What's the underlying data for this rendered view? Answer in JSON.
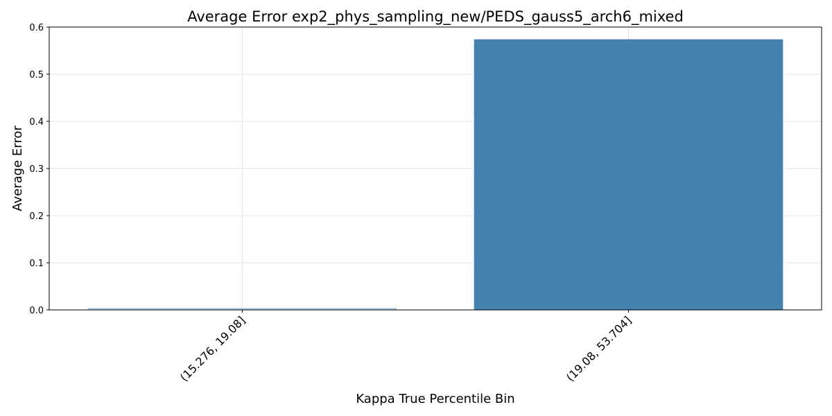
{
  "chart_data": {
    "type": "bar",
    "title": "Average Error exp2_phys_sampling_new/PEDS_gauss5_arch6_mixed",
    "xlabel": "Kappa True Percentile Bin",
    "ylabel": "Average Error",
    "categories": [
      "(15.276, 19.08]",
      "(19.08, 53.704]"
    ],
    "values": [
      0.004,
      0.574
    ],
    "bar_colors": [
      "#a8c6dd",
      "#4682b0"
    ],
    "ylim": [
      0,
      0.6
    ],
    "yticks": [
      "0.0",
      "0.1",
      "0.2",
      "0.3",
      "0.4",
      "0.5",
      "0.6"
    ],
    "grid": true,
    "legend": "none"
  }
}
